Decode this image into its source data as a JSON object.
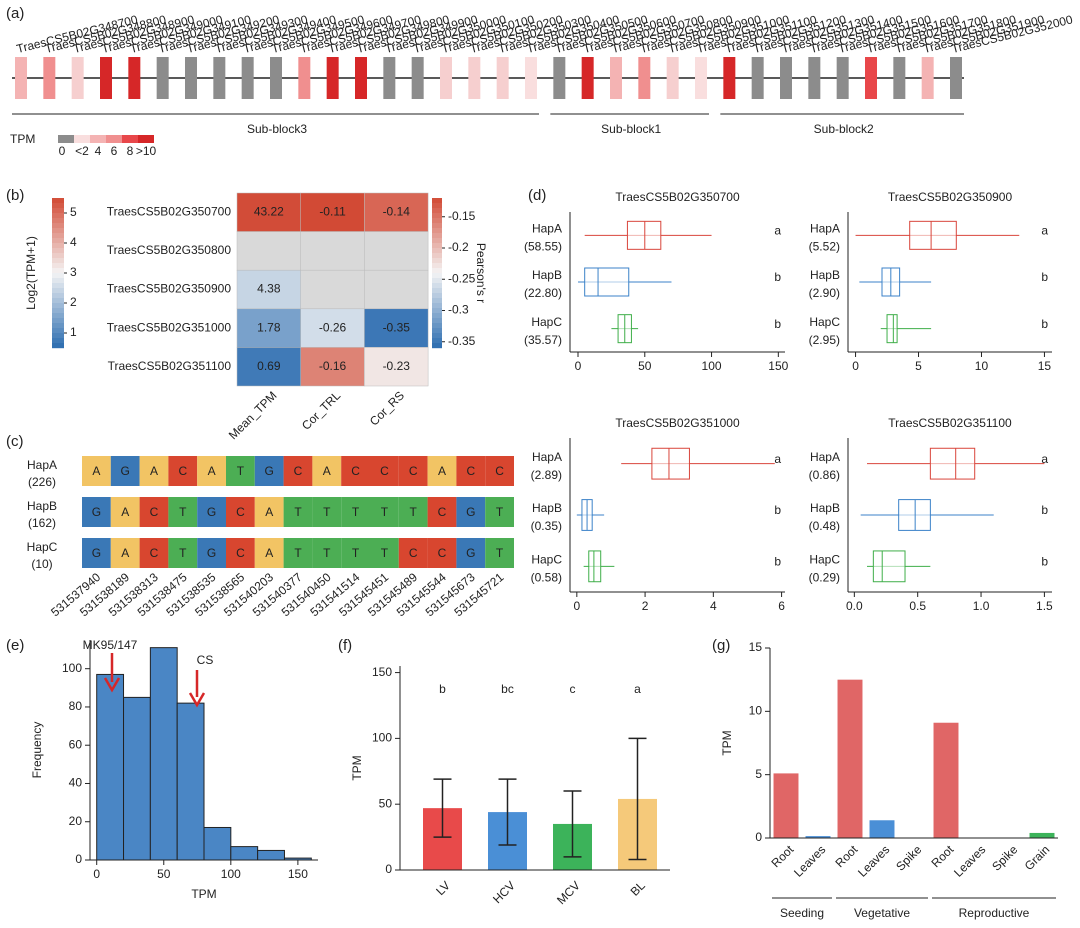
{
  "panel_labels": [
    "(a)",
    "(b)",
    "(c)",
    "(d)",
    "(e)",
    "(f)",
    "(g)"
  ],
  "chart_data": [
    {
      "type": "gene-track",
      "blocks": [
        {
          "label": "Sub-block3",
          "genes": [
            {
              "label": "TraesCS5B02G348700",
              "color": "#f4b3b3"
            },
            {
              "label": "TraesCS5B02G348800",
              "color": "#f08f8f"
            },
            {
              "label": "TraesCS5B02G348900",
              "color": "#f6cfcf"
            },
            {
              "label": "TraesCS5B02G349000",
              "color": "#d62728"
            },
            {
              "label": "TraesCS5B02G349100",
              "color": "#d62728"
            },
            {
              "label": "TraesCS5B02G349200",
              "color": "#8c8c8c"
            },
            {
              "label": "TraesCS5B02G349300",
              "color": "#8c8c8c"
            },
            {
              "label": "TraesCS5B02G349400",
              "color": "#8c8c8c"
            },
            {
              "label": "TraesCS5B02G349500",
              "color": "#8c8c8c"
            },
            {
              "label": "TraesCS5B02G349600",
              "color": "#8c8c8c"
            },
            {
              "label": "TraesCS5B02G349700",
              "color": "#f08f8f"
            },
            {
              "label": "TraesCS5B02G349800",
              "color": "#d62728"
            },
            {
              "label": "TraesCS5B02G349900",
              "color": "#d62728"
            },
            {
              "label": "TraesCS5B02G350000",
              "color": "#8c8c8c"
            },
            {
              "label": "TraesCS5B02G350100",
              "color": "#8c8c8c"
            },
            {
              "label": "TraesCS5B02G350200",
              "color": "#f6cfcf"
            },
            {
              "label": "TraesCS5B02G350300",
              "color": "#f6cfcf"
            },
            {
              "label": "TraesCS5B02G350400",
              "color": "#f6cfcf"
            },
            {
              "label": "TraesCS5B02G350500",
              "color": "#f9dede"
            }
          ]
        },
        {
          "label": "Sub-block1",
          "genes": [
            {
              "label": "TraesCS5B02G350600",
              "color": "#8c8c8c"
            },
            {
              "label": "TraesCS5B02G350700",
              "color": "#d62728"
            },
            {
              "label": "TraesCS5B02G350800",
              "color": "#f4b3b3"
            },
            {
              "label": "TraesCS5B02G350900",
              "color": "#f08f8f"
            },
            {
              "label": "TraesCS5B02G351000",
              "color": "#f6cfcf"
            },
            {
              "label": "TraesCS5B02G351100",
              "color": "#f9dede"
            }
          ]
        },
        {
          "label": "Sub-block2",
          "genes": [
            {
              "label": "TraesCS5B02G351200",
              "color": "#d62728"
            },
            {
              "label": "TraesCS5B02G351300",
              "color": "#8c8c8c"
            },
            {
              "label": "TraesCS5B02G351400",
              "color": "#8c8c8c"
            },
            {
              "label": "TraesCS5B02G351500",
              "color": "#8c8c8c"
            },
            {
              "label": "TraesCS5B02G351600",
              "color": "#8c8c8c"
            },
            {
              "label": "TraesCS5B02G351700",
              "color": "#e8474a"
            },
            {
              "label": "TraesCS5B02G351800",
              "color": "#8c8c8c"
            },
            {
              "label": "TraesCS5B02G351900",
              "color": "#f4b3b3"
            },
            {
              "label": "TraesCS5B02G352000",
              "color": "#8c8c8c"
            }
          ]
        }
      ],
      "legend": {
        "title": "TPM",
        "ticks": [
          0,
          {
            "value": 2,
            "label": "<2"
          },
          4,
          6,
          8,
          {
            "value": 10,
            "label": ">10"
          }
        ],
        "colors": [
          "#8c8c8c",
          "#f9dede",
          "#f4b3b3",
          "#f08f8f",
          "#e8474a",
          "#d62728"
        ]
      }
    },
    {
      "type": "heatmap",
      "rows": [
        "TraesCS5B02G350700",
        "TraesCS5B02G350800",
        "TraesCS5B02G350900",
        "TraesCS5B02G351000",
        "TraesCS5B02G351100"
      ],
      "columns": [
        "Mean_TPM",
        "Cor_TRL",
        "Cor_RS"
      ],
      "values": [
        [
          43.22,
          -0.11,
          -0.14
        ],
        [
          null,
          null,
          null
        ],
        [
          4.38,
          null,
          null
        ],
        [
          1.78,
          -0.26,
          -0.35
        ],
        [
          0.69,
          -0.16,
          -0.23
        ]
      ],
      "missing_color": "#d9d9d9",
      "colorbars": [
        {
          "title": "Log2(TPM+1)",
          "lim": [
            0.5,
            5.5
          ],
          "ticks": [
            1,
            2,
            3,
            4,
            5
          ],
          "colors": [
            "#2b6cb0",
            "#f4f4f4",
            "#d24a35"
          ]
        },
        {
          "title": "Pearson's r",
          "lim": [
            -0.36,
            -0.12
          ],
          "ticks": [
            -0.15,
            -0.2,
            -0.25,
            -0.3,
            -0.35
          ],
          "colors": [
            "#2b6cb0",
            "#f4f4f4",
            "#d24a35"
          ]
        }
      ]
    },
    {
      "type": "alignment",
      "haplotypes": [
        {
          "name": "HapA",
          "count": "(226)",
          "bases": [
            "A",
            "G",
            "A",
            "C",
            "A",
            "T",
            "G",
            "C",
            "A",
            "C",
            "C",
            "C",
            "A",
            "C",
            "C"
          ]
        },
        {
          "name": "HapB",
          "count": "(162)",
          "bases": [
            "G",
            "A",
            "C",
            "T",
            "G",
            "C",
            "A",
            "T",
            "T",
            "T",
            "T",
            "T",
            "C",
            "G",
            "T"
          ]
        },
        {
          "name": "HapC",
          "count": "(10)",
          "bases": [
            "G",
            "A",
            "C",
            "T",
            "G",
            "C",
            "A",
            "T",
            "T",
            "T",
            "T",
            "C",
            "C",
            "G",
            "T"
          ]
        }
      ],
      "positions": [
        "531537940",
        "531538189",
        "531538313",
        "531538475",
        "531538535",
        "531538565",
        "531540203",
        "531540377",
        "531540450",
        "531541514",
        "531545451",
        "531545489",
        "531545544",
        "531545673",
        "531545721"
      ],
      "base_colors": {
        "A": "#f2c464",
        "C": "#d8462f",
        "G": "#3a78b6",
        "T": "#4cae54"
      }
    },
    {
      "type": "box",
      "title": "TraesCS5B02G350700",
      "categories": [
        "HapA",
        "HapB",
        "HapC"
      ],
      "category_labels": [
        "(58.55)",
        "(22.80)",
        "(35.57)"
      ],
      "letters": [
        "a",
        "b",
        "b"
      ],
      "colors": [
        "#d9453b",
        "#3b82c8",
        "#3fae49"
      ],
      "boxes": [
        {
          "min": 5,
          "q1": 37,
          "median": 50,
          "q3": 62,
          "max": 100
        },
        {
          "min": 0,
          "q1": 5,
          "median": 15,
          "q3": 38,
          "max": 70
        },
        {
          "min": 25,
          "q1": 30,
          "median": 35,
          "q3": 40,
          "max": 45
        }
      ],
      "xlim": [
        -6,
        155
      ],
      "xticks": [
        0,
        50,
        100,
        150
      ]
    },
    {
      "type": "box",
      "title": "TraesCS5B02G350900",
      "categories": [
        "HapA",
        "HapB",
        "HapC"
      ],
      "category_labels": [
        "(5.52)",
        "(2.90)",
        "(2.95)"
      ],
      "letters": [
        "a",
        "b",
        "b"
      ],
      "colors": [
        "#d9453b",
        "#3b82c8",
        "#3fae49"
      ],
      "boxes": [
        {
          "min": 0,
          "q1": 4.3,
          "median": 6,
          "q3": 8,
          "max": 13
        },
        {
          "min": 0.3,
          "q1": 2.1,
          "median": 2.8,
          "q3": 3.5,
          "max": 6
        },
        {
          "min": 2,
          "q1": 2.5,
          "median": 3,
          "q3": 3.3,
          "max": 6
        }
      ],
      "xlim": [
        -0.6,
        15.6
      ],
      "xticks": [
        0,
        5,
        10,
        15
      ]
    },
    {
      "type": "box",
      "title": "TraesCS5B02G351000",
      "categories": [
        "HapA",
        "HapB",
        "HapC"
      ],
      "category_labels": [
        "(2.89)",
        "(0.35)",
        "(0.58)"
      ],
      "letters": [
        "a",
        "b",
        "b"
      ],
      "colors": [
        "#d9453b",
        "#3b82c8",
        "#3fae49"
      ],
      "boxes": [
        {
          "min": 1.3,
          "q1": 2.2,
          "median": 2.7,
          "q3": 3.3,
          "max": 5.8
        },
        {
          "min": 0,
          "q1": 0.15,
          "median": 0.3,
          "q3": 0.45,
          "max": 0.8
        },
        {
          "min": 0.2,
          "q1": 0.35,
          "median": 0.5,
          "q3": 0.7,
          "max": 1.1
        }
      ],
      "xlim": [
        -0.2,
        6.1
      ],
      "xticks": [
        0,
        2,
        4,
        6
      ]
    },
    {
      "type": "box",
      "title": "TraesCS5B02G351100",
      "categories": [
        "HapA",
        "HapB",
        "HapC"
      ],
      "category_labels": [
        "(0.86)",
        "(0.48)",
        "(0.29)"
      ],
      "letters": [
        "a",
        "b",
        "b"
      ],
      "colors": [
        "#d9453b",
        "#3b82c8",
        "#3fae49"
      ],
      "boxes": [
        {
          "min": 0.1,
          "q1": 0.6,
          "median": 0.8,
          "q3": 0.95,
          "max": 1.5
        },
        {
          "min": 0.05,
          "q1": 0.35,
          "median": 0.48,
          "q3": 0.6,
          "max": 1.1
        },
        {
          "min": 0.1,
          "q1": 0.15,
          "median": 0.22,
          "q3": 0.4,
          "max": 0.6
        }
      ],
      "xlim": [
        -0.05,
        1.56
      ],
      "xticks": [
        {
          "value": 0,
          "label": "0.0"
        },
        0.5,
        {
          "value": 1,
          "label": "1.0"
        },
        1.5
      ]
    },
    {
      "type": "histogram",
      "xlabel": "TPM",
      "ylabel": "Frequency",
      "bins": [
        0,
        20,
        40,
        60,
        80,
        100,
        120,
        140,
        160
      ],
      "values": [
        97,
        85,
        111,
        82,
        17,
        7,
        5,
        1
      ],
      "color": "#4a86c5",
      "xlim": [
        -5,
        165
      ],
      "xticks": [
        0,
        50,
        100,
        150
      ],
      "ylim": [
        0,
        115
      ],
      "yticks": [
        0,
        20,
        40,
        60,
        80,
        100
      ],
      "annotations": [
        "MK95/147",
        "CS"
      ]
    },
    {
      "type": "bar",
      "ylabel": "TPM",
      "categories": [
        "LV",
        "HCV",
        "MCV",
        "BL"
      ],
      "values": [
        47,
        44,
        35,
        54
      ],
      "errors": [
        22,
        25,
        25,
        46
      ],
      "letters": [
        "b",
        "bc",
        "c",
        "a"
      ],
      "colors": [
        "#e84a4a",
        "#4a8fd6",
        "#3cb35a",
        "#f5c97a"
      ],
      "ylim": [
        0,
        155
      ],
      "yticks": [
        0,
        50,
        100,
        150
      ]
    },
    {
      "type": "grouped-bar",
      "ylabel": "TPM",
      "ylim": [
        0,
        15
      ],
      "yticks": [
        0,
        5,
        10,
        15
      ],
      "groups": [
        {
          "label": "Seeding",
          "categories": [
            "Root",
            "Leaves"
          ],
          "values": [
            5.1,
            0.15
          ],
          "colors": [
            "#e06666",
            "#4a8fd6"
          ]
        },
        {
          "label": "Vegetative",
          "categories": [
            "Root",
            "Leaves",
            "Spike"
          ],
          "values": [
            12.5,
            1.4,
            0
          ],
          "colors": [
            "#e06666",
            "#4a8fd6",
            "#f5c97a"
          ]
        },
        {
          "label": "Reproductive",
          "categories": [
            "Root",
            "Leaves",
            "Spike",
            "Grain"
          ],
          "values": [
            9.1,
            0,
            0,
            0.4
          ],
          "colors": [
            "#e06666",
            "#4a8fd6",
            "#f5c97a",
            "#3cb35a"
          ]
        }
      ]
    }
  ]
}
